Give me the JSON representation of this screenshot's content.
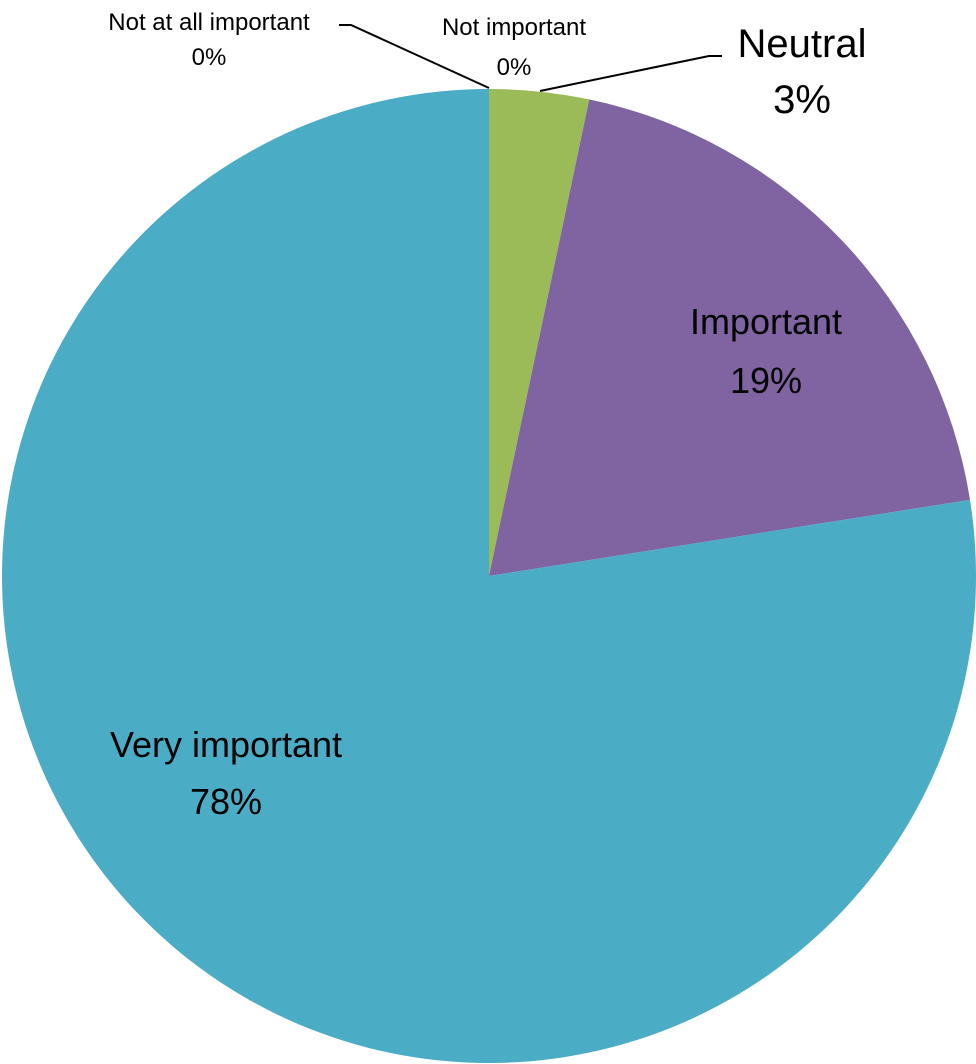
{
  "chart_data": {
    "type": "pie",
    "title": "",
    "slices": [
      {
        "label": "Not at all important",
        "percent_label": "0%",
        "value": 0,
        "color": "#4f81bd"
      },
      {
        "label": "Not important",
        "percent_label": "0%",
        "value": 0,
        "color": "#c0504d"
      },
      {
        "label": "Neutral",
        "percent_label": "3%",
        "value": 3.3,
        "color": "#9bbb59"
      },
      {
        "label": "Important",
        "percent_label": "19%",
        "value": 19.2,
        "color": "#8064a2"
      },
      {
        "label": "Very important",
        "percent_label": "78%",
        "value": 77.5,
        "color": "#4bacc6"
      }
    ]
  }
}
